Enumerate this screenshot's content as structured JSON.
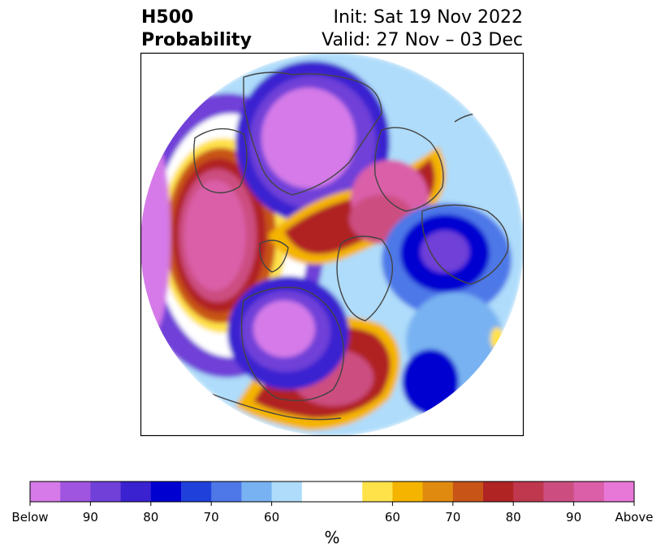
{
  "title": {
    "line1": "H500",
    "line2": "Probability"
  },
  "run_info": {
    "init": "Init: Sat 19 Nov 2022",
    "valid": "Valid: 27 Nov – 03 Dec"
  },
  "colorbar": {
    "unit": "%",
    "below": [
      "#d57ae8",
      "#a055e0",
      "#7040d8",
      "#3a22d0",
      "#0000d0",
      "#2040dc",
      "#4e78e8",
      "#78b2f2",
      "#aedcfa"
    ],
    "neutral": "#ffffff",
    "above": [
      "#ffe24a",
      "#f4b400",
      "#e08a10",
      "#c85418",
      "#b02424",
      "#c0384e",
      "#cc4e80",
      "#da5ea8",
      "#e878d8"
    ],
    "tick_labels": [
      "Below",
      "90",
      "80",
      "70",
      "60",
      "60",
      "70",
      "80",
      "90",
      "Above"
    ]
  },
  "colors": {
    "coastline": "#444444",
    "frame": "#000000"
  }
}
